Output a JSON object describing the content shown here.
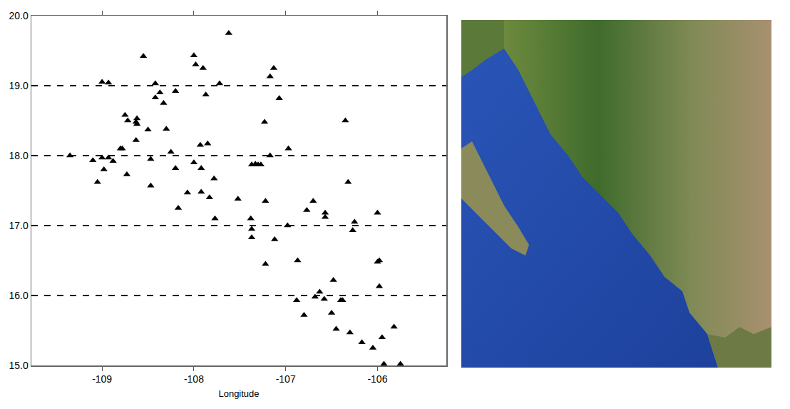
{
  "chart_data": {
    "type": "scatter",
    "x_label": "Longitude",
    "x": [
      -109.35,
      -109.1,
      -109.0,
      -108.93,
      -108.88,
      -109.05,
      -108.98,
      -109.0,
      -108.93,
      -108.8,
      -108.78,
      -108.75,
      -108.72,
      -108.63,
      -108.62,
      -108.62,
      -108.63,
      -108.55,
      -108.5,
      -108.73,
      -108.47,
      -108.47,
      -108.42,
      -108.42,
      -108.37,
      -108.33,
      -108.3,
      -108.25,
      -108.2,
      -108.2,
      -108.17,
      -108.07,
      -108.0,
      -107.98,
      -108.0,
      -107.93,
      -107.9,
      -107.87,
      -107.92,
      -107.92,
      -107.85,
      -107.83,
      -107.78,
      -107.77,
      -107.72,
      -107.62,
      -107.52,
      -107.38,
      -107.37,
      -107.37,
      -107.37,
      -107.33,
      -107.3,
      -107.27,
      -107.23,
      -107.22,
      -107.22,
      -107.17,
      -107.13,
      -107.17,
      -107.12,
      -107.07,
      -106.97,
      -106.98,
      -106.87,
      -106.88,
      -106.8,
      -106.77,
      -106.7,
      -106.68,
      -106.63,
      -106.58,
      -106.57,
      -106.57,
      -106.5,
      -106.48,
      -106.45,
      -106.4,
      -106.38,
      -106.35,
      -106.32,
      -106.3,
      -106.25,
      -106.27,
      -106.17,
      -106.0,
      -106.0,
      -105.98,
      -105.98,
      -106.05,
      -105.95,
      -105.93,
      -105.82,
      -105.75
    ],
    "values": [
      18.0,
      17.93,
      17.97,
      17.97,
      17.92,
      17.62,
      17.8,
      19.05,
      19.04,
      18.1,
      18.1,
      18.58,
      18.5,
      18.48,
      18.53,
      18.45,
      18.22,
      19.42,
      18.37,
      17.73,
      17.95,
      17.57,
      19.03,
      18.83,
      18.9,
      18.75,
      18.38,
      18.05,
      18.92,
      17.82,
      17.25,
      17.47,
      19.43,
      19.3,
      17.9,
      18.15,
      19.25,
      18.87,
      17.82,
      17.48,
      18.17,
      17.4,
      17.67,
      17.1,
      19.03,
      19.75,
      17.38,
      17.1,
      16.95,
      16.83,
      17.87,
      17.88,
      17.87,
      17.87,
      18.48,
      17.35,
      16.45,
      19.13,
      19.25,
      18.0,
      16.8,
      18.82,
      18.1,
      17.0,
      16.5,
      15.93,
      15.72,
      17.22,
      17.35,
      15.98,
      16.05,
      15.95,
      17.12,
      17.18,
      15.75,
      16.22,
      15.52,
      15.93,
      15.93,
      18.5,
      17.62,
      15.47,
      17.05,
      16.93,
      15.33,
      17.18,
      16.48,
      16.5,
      16.13,
      15.25,
      15.4,
      15.02,
      15.55,
      15.02
    ],
    "color": "#000000",
    "marker": "triangle-up",
    "xlim": [
      -109.77,
      -105.25
    ],
    "xticks": [
      -109,
      -108,
      -107,
      -106
    ],
    "ylim": [
      15,
      20
    ],
    "yticks": [
      {
        "value": 15,
        "label": "15.0"
      },
      {
        "value": 16,
        "label": "16.0"
      },
      {
        "value": 17,
        "label": "17.0"
      },
      {
        "value": 18,
        "label": "18.0"
      },
      {
        "value": 19,
        "label": "19.0"
      },
      {
        "value": 20,
        "label": "20.0"
      }
    ],
    "grid": true,
    "line_style": "dashed"
  }
}
